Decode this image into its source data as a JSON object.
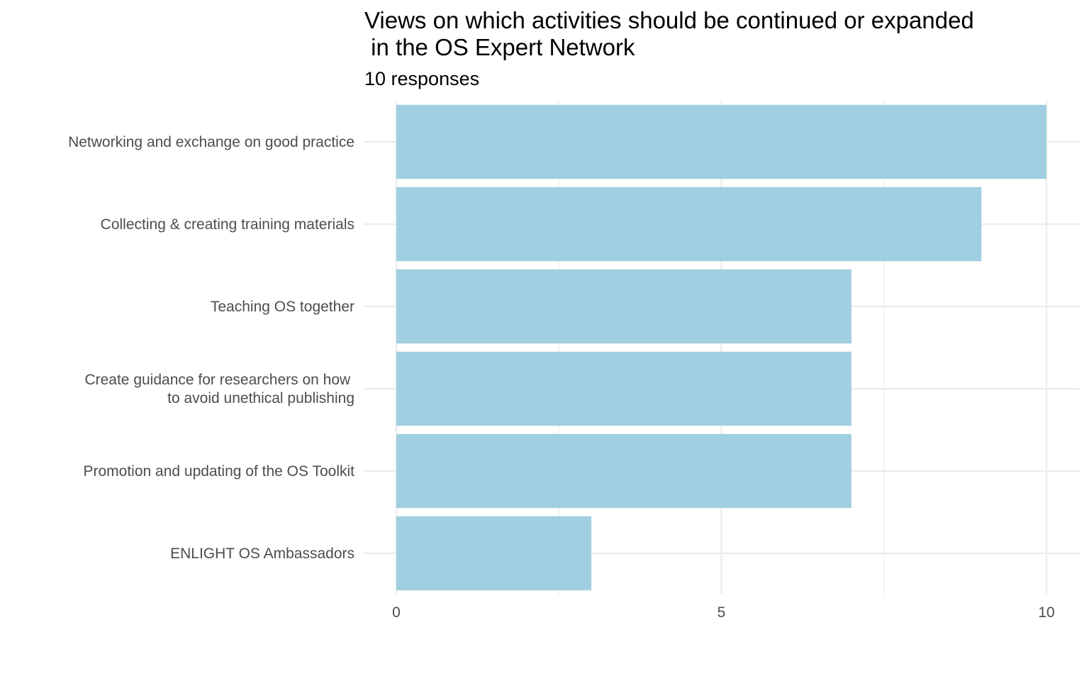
{
  "chart_data": {
    "type": "bar",
    "orientation": "horizontal",
    "title": "Views on which activities should be continued or expanded\n in the OS Expert Network",
    "subtitle": "10 responses",
    "xlabel": "",
    "ylabel": "",
    "xlim": [
      0,
      10
    ],
    "x_ticks": [
      0,
      5,
      10
    ],
    "grid": true,
    "legend": "none",
    "bar_color": "#9fcfe0",
    "categories": [
      "Networking and exchange on good practice",
      "Collecting & creating training materials",
      "Teaching OS together",
      "Create guidance for researchers on how \nto avoid unethical publishing",
      "Promotion and updating of the OS Toolkit",
      "ENLIGHT OS Ambassadors"
    ],
    "values": [
      10,
      9,
      7,
      7,
      7,
      3
    ]
  }
}
